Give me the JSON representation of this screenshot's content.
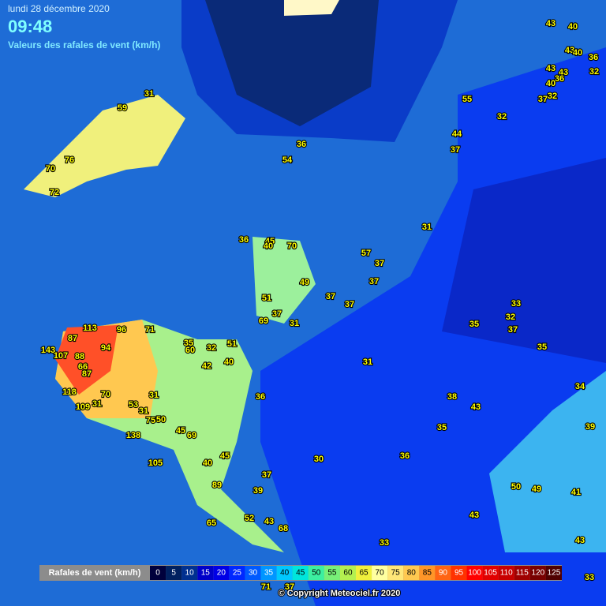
{
  "header": {
    "date": "lundi 28 décembre 2020",
    "time": "09:48",
    "subtitle": "Valeurs des rafales de vent (km/h)"
  },
  "stations": [
    43,
    40,
    43,
    40,
    36,
    43,
    43,
    36,
    32,
    40,
    32,
    37,
    55,
    32,
    44,
    37,
    31,
    59,
    76,
    70,
    72,
    36,
    54,
    31,
    36,
    45,
    40,
    70,
    57,
    37,
    37,
    49,
    37,
    37,
    51,
    37,
    69,
    31,
    33,
    32,
    37,
    35,
    35,
    113,
    96,
    71,
    87,
    94,
    35,
    60,
    32,
    51,
    143,
    107,
    88,
    66,
    87,
    42,
    40,
    31,
    118,
    70,
    31,
    36,
    38,
    43,
    34,
    109,
    31,
    53,
    31,
    75,
    50,
    45,
    69,
    35,
    39,
    138,
    40,
    45,
    30,
    36,
    105,
    37,
    89,
    39,
    50,
    49,
    41,
    52,
    43,
    65,
    68,
    43,
    33,
    43,
    33,
    71,
    37
  ],
  "legend": {
    "title": "Rafales de vent (km/h)",
    "steps": [
      {
        "value": 0,
        "color": "#00003c"
      },
      {
        "value": 5,
        "color": "#002060"
      },
      {
        "value": 10,
        "color": "#003090"
      },
      {
        "value": 15,
        "color": "#0000c8"
      },
      {
        "value": 20,
        "color": "#0000e6"
      },
      {
        "value": 25,
        "color": "#0028ff"
      },
      {
        "value": 30,
        "color": "#005aff"
      },
      {
        "value": 35,
        "color": "#0096ff"
      },
      {
        "value": 40,
        "color": "#00c8ff"
      },
      {
        "value": 45,
        "color": "#00e6dc"
      },
      {
        "value": 50,
        "color": "#3cf0a0"
      },
      {
        "value": 55,
        "color": "#78f078"
      },
      {
        "value": 60,
        "color": "#b4f050"
      },
      {
        "value": 65,
        "color": "#f0f03c"
      },
      {
        "value": 70,
        "color": "#ffffa0"
      },
      {
        "value": 75,
        "color": "#ffe678"
      },
      {
        "value": 80,
        "color": "#ffc850"
      },
      {
        "value": 85,
        "color": "#ff9628"
      },
      {
        "value": 90,
        "color": "#ff6414"
      },
      {
        "value": 95,
        "color": "#ff3200"
      },
      {
        "value": 100,
        "color": "#ff0000"
      },
      {
        "value": 105,
        "color": "#e10000"
      },
      {
        "value": 110,
        "color": "#c80000"
      },
      {
        "value": 115,
        "color": "#a00000"
      },
      {
        "value": 120,
        "color": "#780000"
      },
      {
        "value": 125,
        "color": "#500000"
      }
    ]
  },
  "copyright": "© Copyright Meteociel.fr 2020"
}
